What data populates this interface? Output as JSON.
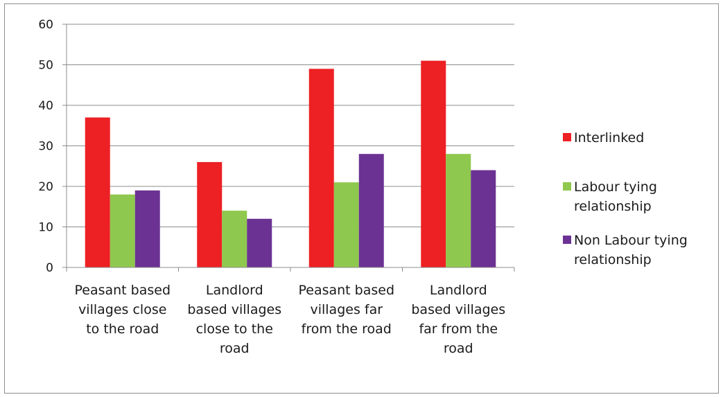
{
  "chart_data": {
    "type": "bar",
    "title": "",
    "xlabel": "",
    "ylabel": "",
    "ylim": [
      0,
      60
    ],
    "yticks": [
      0,
      10,
      20,
      30,
      40,
      50,
      60
    ],
    "grid": true,
    "legend_position": "right",
    "categories": [
      [
        "Peasant based",
        "villages close",
        "to the road"
      ],
      [
        "Landlord",
        "based villages",
        "close to the",
        "road"
      ],
      [
        "Peasant based",
        "villages far",
        "from the road"
      ],
      [
        "Landlord",
        "based villages",
        "far from the",
        "road"
      ]
    ],
    "series": [
      {
        "name": [
          "Interlinked"
        ],
        "color": "#ed2024",
        "values": [
          37,
          26,
          49,
          51
        ]
      },
      {
        "name": [
          "Labour tying",
          "relationship"
        ],
        "color": "#8fc84e",
        "values": [
          18,
          14,
          21,
          28
        ]
      },
      {
        "name": [
          "Non Labour tying",
          "relationship"
        ],
        "color": "#6b3293",
        "values": [
          19,
          12,
          28,
          24
        ]
      }
    ]
  }
}
